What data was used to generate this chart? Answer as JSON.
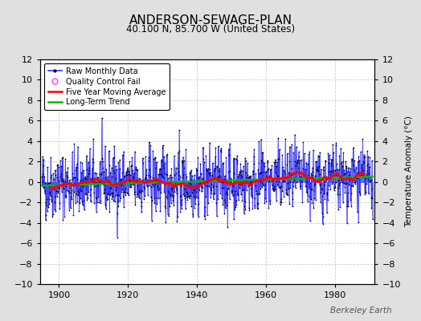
{
  "title": "ANDERSON-SEWAGE-PLAN",
  "subtitle": "40.100 N, 85.700 W (United States)",
  "ylabel": "Temperature Anomaly (°C)",
  "watermark": "Berkeley Earth",
  "year_start": 1895,
  "year_end": 1990,
  "ylim": [
    -10,
    12
  ],
  "yticks": [
    -10,
    -8,
    -6,
    -4,
    -2,
    0,
    2,
    4,
    6,
    8,
    10,
    12
  ],
  "xticks": [
    1900,
    1920,
    1940,
    1960,
    1980
  ],
  "raw_color": "#3333ff",
  "raw_fill_color": "#6666ff",
  "marker_color": "#000000",
  "moving_avg_color": "#ff0000",
  "trend_color": "#00bb00",
  "qc_color": "#ff44ff",
  "background_color": "#e0e0e0",
  "plot_bg_color": "#ffffff",
  "grid_color": "#cccccc",
  "title_fontsize": 11,
  "subtitle_fontsize": 8.5,
  "label_fontsize": 7.5,
  "tick_fontsize": 8,
  "legend_fontsize": 7
}
